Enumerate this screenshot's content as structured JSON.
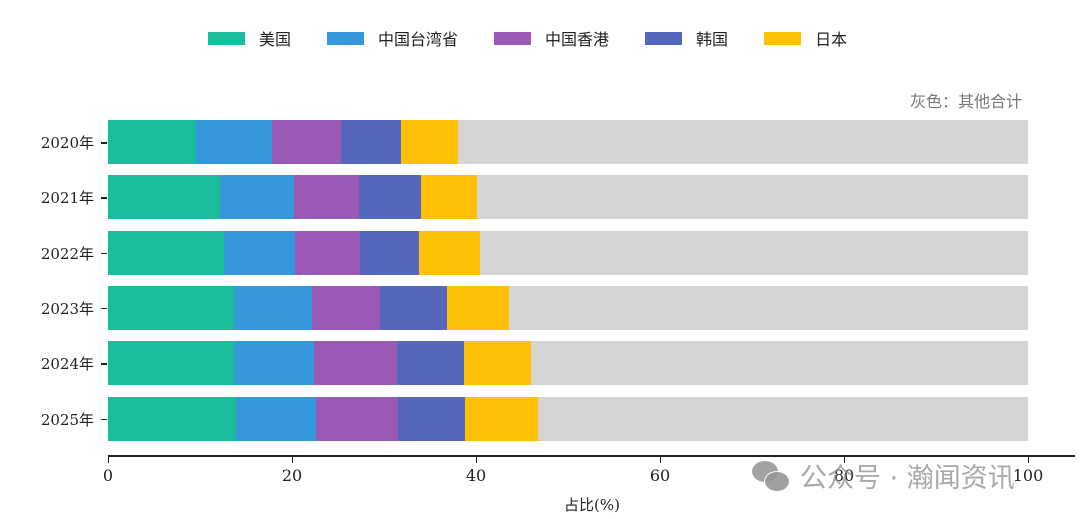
{
  "chart_data": {
    "type": "bar",
    "orientation": "horizontal",
    "stacked": true,
    "title": "",
    "xlabel": "占比(%)",
    "ylabel": "",
    "xlim": [
      0,
      100
    ],
    "xticks": [
      0,
      20,
      40,
      60,
      80,
      100
    ],
    "grid": false,
    "legend_position": "top",
    "categories": [
      "2020年",
      "2021年",
      "2022年",
      "2023年",
      "2024年",
      "2025年"
    ],
    "series": [
      {
        "name": "美国",
        "color": "#1ABC9C",
        "values": [
          9.6,
          12.2,
          12.6,
          13.7,
          13.7,
          13.9
        ]
      },
      {
        "name": "中国台湾省",
        "color": "#3498DB",
        "values": [
          8.2,
          8.0,
          7.7,
          8.5,
          8.7,
          8.7
        ]
      },
      {
        "name": "中国香港",
        "color": "#9B59B6",
        "values": [
          7.5,
          7.1,
          7.1,
          7.4,
          9.0,
          8.9
        ]
      },
      {
        "name": "韩国",
        "color": "#5567BD",
        "values": [
          6.6,
          6.7,
          6.4,
          7.2,
          7.3,
          7.3
        ]
      },
      {
        "name": "日本",
        "color": "#FFC107",
        "values": [
          6.1,
          6.1,
          6.6,
          6.8,
          7.3,
          7.9
        ]
      },
      {
        "name": "其他合计",
        "color": "#D5D5D3",
        "values": [
          62.0,
          59.9,
          59.6,
          56.4,
          54.0,
          53.3
        ]
      }
    ],
    "annotations": [
      "灰色：其他合计"
    ]
  },
  "legend": [
    {
      "label": "美国",
      "color": "#1ABC9C"
    },
    {
      "label": "中国台湾省",
      "color": "#3498DB"
    },
    {
      "label": "中国香港",
      "color": "#9B59B6"
    },
    {
      "label": "韩国",
      "color": "#5567BD"
    },
    {
      "label": "日本",
      "color": "#FFC107"
    }
  ],
  "note": "灰色：其他合计",
  "xaxis": {
    "label": "占比(%)",
    "ticks": [
      "0",
      "20",
      "40",
      "60",
      "80",
      "100"
    ]
  },
  "watermark": {
    "text": "公众号 · 瀚闻资讯",
    "icon": "wechat-icon"
  }
}
